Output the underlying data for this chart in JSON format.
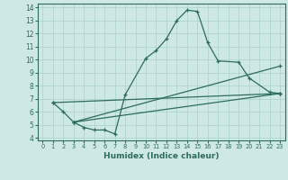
{
  "title": "",
  "xlabel": "Humidex (Indice chaleur)",
  "xlim": [
    -0.5,
    23.5
  ],
  "ylim": [
    3.8,
    14.3
  ],
  "xticks": [
    0,
    1,
    2,
    3,
    4,
    5,
    6,
    7,
    8,
    9,
    10,
    11,
    12,
    13,
    14,
    15,
    16,
    17,
    18,
    19,
    20,
    21,
    22,
    23
  ],
  "yticks": [
    4,
    5,
    6,
    7,
    8,
    9,
    10,
    11,
    12,
    13,
    14
  ],
  "bg_color": "#cde8e5",
  "line_color": "#2e6b5e",
  "grid_color": "#a8d0cc",
  "lines": [
    {
      "x": [
        1,
        2,
        3,
        4,
        5,
        6,
        7,
        8,
        10,
        11,
        12,
        13,
        14,
        15,
        16,
        17,
        19,
        20,
        22,
        23
      ],
      "y": [
        6.7,
        6.0,
        5.2,
        4.8,
        4.6,
        4.6,
        4.3,
        7.3,
        10.1,
        10.7,
        11.6,
        13.0,
        13.8,
        13.7,
        11.3,
        9.9,
        9.8,
        8.6,
        7.5,
        7.4
      ]
    },
    {
      "x": [
        1,
        23
      ],
      "y": [
        6.7,
        7.4
      ]
    },
    {
      "x": [
        3,
        23
      ],
      "y": [
        5.2,
        7.4
      ]
    },
    {
      "x": [
        3,
        23
      ],
      "y": [
        5.2,
        9.5
      ]
    }
  ]
}
